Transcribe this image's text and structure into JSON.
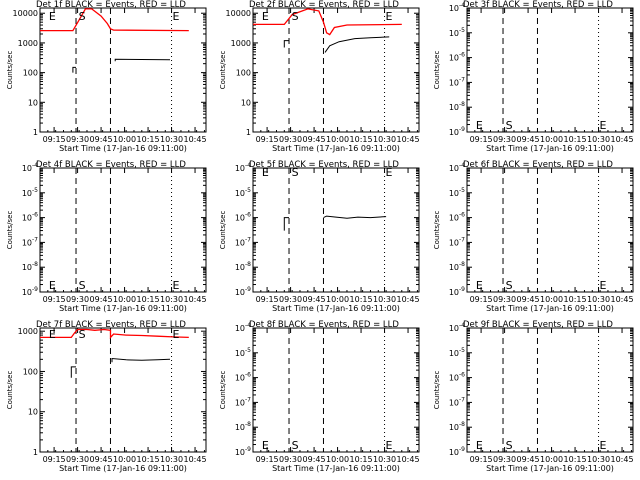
{
  "chart_data": [
    {
      "type": "line",
      "title": "Det 1f BLACK = Events, RED = LLD",
      "xlabel": "Start Time (17-Jan-16 09:11:00)",
      "ylabel": "Counts/sec",
      "yscale": "log",
      "yticks": [
        "1",
        "10",
        "100",
        "1000",
        "10000"
      ],
      "ylim": [
        1,
        15000
      ],
      "xlim_min": [
        -5,
        101
      ],
      "xticks": [
        "09:15",
        "09:30",
        "09:45",
        "10:00",
        "10:15",
        "10:30",
        "10:45"
      ],
      "xtick_min": [
        4,
        19,
        34,
        49,
        64,
        79,
        94
      ],
      "markers": [
        {
          "label": "E",
          "x_min": 0,
          "y": 10000
        },
        {
          "label": "S",
          "x_min": 19,
          "y": 10000
        },
        {
          "label": "E",
          "x_min": 79,
          "y": 10000
        }
      ],
      "dashed_lines_min": [
        18,
        40
      ],
      "dotted_lines_min": [
        79
      ],
      "series": [
        {
          "color": "#ff0000",
          "points": [
            [
              -5,
              2600
            ],
            [
              16,
              2600
            ],
            [
              20,
              6000
            ],
            [
              24,
              14000
            ],
            [
              28,
              14000
            ],
            [
              34,
              8000
            ],
            [
              38,
              4500
            ],
            [
              40,
              3000
            ],
            [
              42,
              2700
            ],
            [
              90,
              2600
            ]
          ]
        },
        {
          "color": "#000000",
          "points": [
            [
              16,
              100
            ],
            [
              16,
              150
            ],
            [
              18,
              150
            ]
          ]
        },
        {
          "color": "#000000",
          "points": [
            [
              43,
              240
            ],
            [
              43,
              280
            ],
            [
              78,
              270
            ]
          ]
        }
      ]
    },
    {
      "type": "line",
      "title": "Det 2f BLACK = Events, RED = LLD",
      "xlabel": "Start Time (17-Jan-16 09:11:00)",
      "ylabel": "Counts/sec",
      "yscale": "log",
      "yticks": [
        "1",
        "10",
        "100",
        "1000",
        "10000"
      ],
      "ylim": [
        1,
        15000
      ],
      "xlim_min": [
        -5,
        101
      ],
      "xticks": [
        "09:15",
        "09:30",
        "09:45",
        "10:00",
        "10:15",
        "10:30",
        "10:45"
      ],
      "xtick_min": [
        4,
        19,
        34,
        49,
        64,
        79,
        94
      ],
      "markers": [
        {
          "label": "E",
          "x_min": 0,
          "y": 10000
        },
        {
          "label": "S",
          "x_min": 19,
          "y": 10000
        },
        {
          "label": "E",
          "x_min": 79,
          "y": 10000
        }
      ],
      "dashed_lines_min": [
        18,
        40
      ],
      "dotted_lines_min": [
        79
      ],
      "series": [
        {
          "color": "#ff0000",
          "points": [
            [
              -5,
              4200
            ],
            [
              15,
              4200
            ],
            [
              20,
              9000
            ],
            [
              30,
              14000
            ],
            [
              37,
              12000
            ],
            [
              40,
              5000
            ],
            [
              42,
              2200
            ],
            [
              44,
              1900
            ],
            [
              47,
              3300
            ],
            [
              55,
              4000
            ],
            [
              90,
              4200
            ]
          ]
        },
        {
          "color": "#000000",
          "points": [
            [
              15,
              700
            ],
            [
              15,
              1200
            ],
            [
              18,
              1200
            ]
          ]
        },
        {
          "color": "#000000",
          "points": [
            [
              41,
              480
            ],
            [
              44,
              800
            ],
            [
              50,
              1100
            ],
            [
              60,
              1400
            ],
            [
              70,
              1500
            ],
            [
              82,
              1600
            ]
          ]
        }
      ]
    },
    {
      "type": "line",
      "title": "Det 3f BLACK = Events, RED = LLD",
      "xlabel": "Start Time (17-Jan-16 09:11:00)",
      "ylabel": "Counts/sec",
      "yscale": "log",
      "yticks": [
        "10-9",
        "10-8",
        "10-7",
        "10-6",
        "10-5",
        "10-4"
      ],
      "ylim": [
        1e-09,
        0.0001
      ],
      "xlim_min": [
        -5,
        101
      ],
      "xticks": [
        "09:15",
        "09:30",
        "09:45",
        "10:00",
        "10:15",
        "10:30",
        "10:45"
      ],
      "xtick_min": [
        4,
        19,
        34,
        49,
        64,
        79,
        94
      ],
      "markers": [
        {
          "label": "E",
          "x_min": 0,
          "y": 2e-09
        },
        {
          "label": "S",
          "x_min": 19,
          "y": 2e-09
        },
        {
          "label": "E",
          "x_min": 79,
          "y": 2e-09
        }
      ],
      "dashed_lines_min": [
        18,
        40
      ],
      "dotted_lines_min": [
        79
      ],
      "series": []
    },
    {
      "type": "line",
      "title": "Det 4f BLACK = Events, RED = LLD",
      "xlabel": "Start Time (17-Jan-16 09:11:00)",
      "ylabel": "Counts/sec",
      "yscale": "log",
      "yticks": [
        "10-9",
        "10-8",
        "10-7",
        "10-6",
        "10-5",
        "10-4"
      ],
      "ylim": [
        1e-09,
        0.0001
      ],
      "xlim_min": [
        -5,
        101
      ],
      "xticks": [
        "09:15",
        "09:30",
        "09:45",
        "10:00",
        "10:15",
        "10:30",
        "10:45"
      ],
      "xtick_min": [
        4,
        19,
        34,
        49,
        64,
        79,
        94
      ],
      "markers": [
        {
          "label": "E",
          "x_min": 0,
          "y": 2e-09
        },
        {
          "label": "S",
          "x_min": 19,
          "y": 2e-09
        },
        {
          "label": "E",
          "x_min": 79,
          "y": 2e-09
        }
      ],
      "dashed_lines_min": [
        18,
        40
      ],
      "dotted_lines_min": [
        79
      ],
      "series": []
    },
    {
      "type": "line",
      "title": "Det 5f BLACK = Events, RED = LLD",
      "xlabel": "Start Time (17-Jan-16 09:11:00)",
      "ylabel": "Counts/sec",
      "yscale": "log",
      "yticks": [
        "10-9",
        "10-8",
        "10-7",
        "10-6",
        "10-5",
        "10-4"
      ],
      "ylim": [
        1e-09,
        0.0001
      ],
      "xlim_min": [
        -5,
        101
      ],
      "xticks": [
        "09:15",
        "09:30",
        "09:45",
        "10:00",
        "10:15",
        "10:30",
        "10:45"
      ],
      "xtick_min": [
        4,
        19,
        34,
        49,
        64,
        79,
        94
      ],
      "markers": [
        {
          "label": "E",
          "x_min": 0,
          "y": 0.0001
        },
        {
          "label": "S",
          "x_min": 19,
          "y": 0.0001
        },
        {
          "label": "E",
          "x_min": 79,
          "y": 0.0001
        }
      ],
      "dashed_lines_min": [
        18,
        40
      ],
      "dotted_lines_min": [
        79
      ],
      "series": [
        {
          "color": "#000000",
          "points": [
            [
              15,
              3e-07
            ],
            [
              15,
              1e-06
            ],
            [
              18,
              1e-06
            ]
          ]
        },
        {
          "color": "#000000",
          "points": [
            [
              40,
              1e-06
            ],
            [
              42,
              1.15e-06
            ],
            [
              48,
              1.05e-06
            ],
            [
              55,
              9.5e-07
            ],
            [
              62,
              1.05e-06
            ],
            [
              70,
              1e-06
            ],
            [
              80,
              1.1e-06
            ]
          ]
        }
      ]
    },
    {
      "type": "line",
      "title": "Det 6f BLACK = Events, RED = LLD",
      "xlabel": "Start Time (17-Jan-16 09:11:00)",
      "ylabel": "Counts/sec",
      "yscale": "log",
      "yticks": [
        "10-9",
        "10-8",
        "10-7",
        "10-6",
        "10-5",
        "10-4"
      ],
      "ylim": [
        1e-09,
        0.0001
      ],
      "xlim_min": [
        -5,
        101
      ],
      "xticks": [
        "09:15",
        "09:30",
        "09:45",
        "10:00",
        "10:15",
        "10:30",
        "10:45"
      ],
      "xtick_min": [
        4,
        19,
        34,
        49,
        64,
        79,
        94
      ],
      "markers": [
        {
          "label": "E",
          "x_min": 0,
          "y": 2e-09
        },
        {
          "label": "S",
          "x_min": 19,
          "y": 2e-09
        },
        {
          "label": "E",
          "x_min": 79,
          "y": 2e-09
        }
      ],
      "dashed_lines_min": [
        18,
        40
      ],
      "dotted_lines_min": [
        79
      ],
      "series": []
    },
    {
      "type": "line",
      "title": "Det 7f BLACK = Events, RED = LLD",
      "xlabel": "Start Time (17-Jan-16 09:11:00)",
      "ylabel": "Counts/sec",
      "yscale": "log",
      "yticks": [
        "1",
        "10",
        "100",
        "1000"
      ],
      "ylim": [
        1,
        1200
      ],
      "xlim_min": [
        -5,
        101
      ],
      "xticks": [
        "09:15",
        "09:30",
        "09:45",
        "10:00",
        "10:15",
        "10:30",
        "10:45"
      ],
      "xtick_min": [
        4,
        19,
        34,
        49,
        64,
        79,
        94
      ],
      "markers": [
        {
          "label": "E",
          "x_min": 0,
          "y": 1000
        },
        {
          "label": "S",
          "x_min": 19,
          "y": 1000
        },
        {
          "label": "E",
          "x_min": 79,
          "y": 1000
        }
      ],
      "dashed_lines_min": [
        18,
        40
      ],
      "dotted_lines_min": [
        79
      ],
      "series": [
        {
          "color": "#ff0000",
          "points": [
            [
              -5,
              700
            ],
            [
              15,
              700
            ],
            [
              17,
              900
            ],
            [
              19,
              1100
            ],
            [
              25,
              1100
            ],
            [
              30,
              1050
            ],
            [
              36,
              1100
            ],
            [
              40,
              1050
            ],
            [
              40,
              700
            ],
            [
              42,
              850
            ],
            [
              50,
              800
            ],
            [
              60,
              780
            ],
            [
              70,
              750
            ],
            [
              80,
              720
            ],
            [
              90,
              700
            ]
          ]
        },
        {
          "color": "#000000",
          "points": [
            [
              15,
              70
            ],
            [
              15,
              130
            ],
            [
              18,
              130
            ]
          ]
        },
        {
          "color": "#000000",
          "points": [
            [
              41,
              170
            ],
            [
              41,
              210
            ],
            [
              50,
              195
            ],
            [
              60,
              190
            ],
            [
              70,
              195
            ],
            [
              78,
              200
            ]
          ]
        }
      ]
    },
    {
      "type": "line",
      "title": "Det 8f BLACK = Events, RED = LLD",
      "xlabel": "Start Time (17-Jan-16 09:11:00)",
      "ylabel": "Counts/sec",
      "yscale": "log",
      "yticks": [
        "10-9",
        "10-8",
        "10-7",
        "10-6",
        "10-5",
        "10-4"
      ],
      "ylim": [
        1e-09,
        0.0001
      ],
      "xlim_min": [
        -5,
        101
      ],
      "xticks": [
        "09:15",
        "09:30",
        "09:45",
        "10:00",
        "10:15",
        "10:30",
        "10:45"
      ],
      "xtick_min": [
        4,
        19,
        34,
        49,
        64,
        79,
        94
      ],
      "markers": [
        {
          "label": "E",
          "x_min": 0,
          "y": 2e-09
        },
        {
          "label": "S",
          "x_min": 19,
          "y": 2e-09
        },
        {
          "label": "E",
          "x_min": 79,
          "y": 2e-09
        }
      ],
      "dashed_lines_min": [
        18,
        40
      ],
      "dotted_lines_min": [
        79
      ],
      "series": []
    },
    {
      "type": "line",
      "title": "Det 9f BLACK = Events, RED = LLD",
      "xlabel": "Start Time (17-Jan-16 09:11:00)",
      "ylabel": "Counts/sec",
      "yscale": "log",
      "yticks": [
        "10-9",
        "10-8",
        "10-7",
        "10-6",
        "10-5",
        "10-4"
      ],
      "ylim": [
        1e-09,
        0.0001
      ],
      "xlim_min": [
        -5,
        101
      ],
      "xticks": [
        "09:15",
        "09:30",
        "09:45",
        "10:00",
        "10:15",
        "10:30",
        "10:45"
      ],
      "xtick_min": [
        4,
        19,
        34,
        49,
        64,
        79,
        94
      ],
      "markers": [
        {
          "label": "E",
          "x_min": 0,
          "y": 2e-09
        },
        {
          "label": "S",
          "x_min": 19,
          "y": 2e-09
        },
        {
          "label": "E",
          "x_min": 79,
          "y": 2e-09
        }
      ],
      "dashed_lines_min": [
        18,
        40
      ],
      "dotted_lines_min": [
        79
      ],
      "series": []
    }
  ]
}
